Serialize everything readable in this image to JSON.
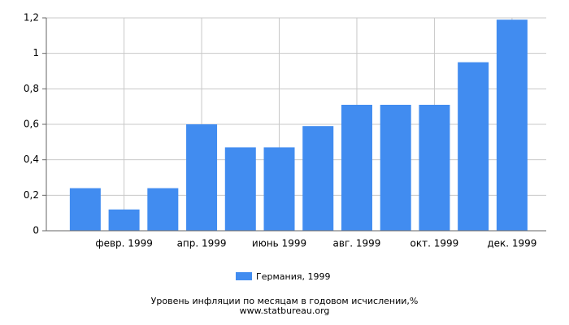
{
  "chart_data": {
    "type": "bar",
    "title": "Уровень инфляции по месяцам в годовом исчислении,%",
    "subtitle": "www.statbureau.org",
    "categories": [
      null,
      "февр. 1999",
      null,
      "апр. 1999",
      null,
      "июнь 1999",
      null,
      "авг. 1999",
      null,
      "окт. 1999",
      null,
      "дек. 1999"
    ],
    "series": [
      {
        "name": "Германия, 1999",
        "color": "#418cf0",
        "values": [
          0.24,
          0.12,
          0.24,
          0.6,
          0.47,
          0.47,
          0.59,
          0.71,
          0.71,
          0.71,
          0.95,
          1.19
        ]
      }
    ],
    "ylim": [
      0,
      1.2
    ],
    "yticks": [
      0,
      {
        "value": 0.2,
        "label": "0,2"
      },
      {
        "value": 0.4,
        "label": "0,4"
      },
      {
        "value": 0.6,
        "label": "0,6"
      },
      {
        "value": 0.8,
        "label": "0,8"
      },
      1,
      {
        "value": 1.2,
        "label": "1,2"
      }
    ],
    "grid": true
  }
}
